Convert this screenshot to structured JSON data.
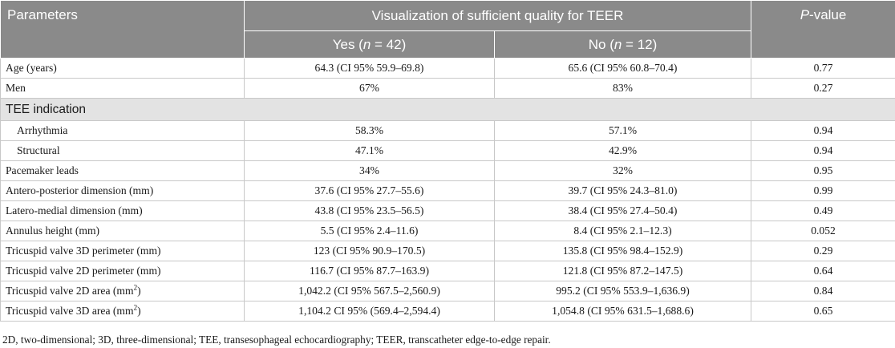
{
  "header": {
    "parameters": "Parameters",
    "group_title": "Visualization of sufficient quality for TEER",
    "p_value_italic": "P",
    "p_value_rest": "-value",
    "yes_prefix": "Yes (",
    "yes_n": "n",
    "yes_suffix": " = 42)",
    "no_prefix": "No (",
    "no_n": "n",
    "no_suffix": " = 12)"
  },
  "rows": [
    {
      "label": "Age (years)",
      "yes": "64.3 (CI 95% 59.9–69.8)",
      "no": "65.6 (CI 95% 60.8–70.4)",
      "p": "0.77"
    },
    {
      "label": "Men",
      "yes": "67%",
      "no": "83%",
      "p": "0.27"
    }
  ],
  "section": {
    "label": "TEE indication"
  },
  "indented_rows": [
    {
      "label": "Arrhythmia",
      "yes": "58.3%",
      "no": "57.1%",
      "p": "0.94"
    },
    {
      "label": "Structural",
      "yes": "47.1%",
      "no": "42.9%",
      "p": "0.94"
    }
  ],
  "rows2": [
    {
      "label": "Pacemaker leads",
      "yes": "34%",
      "no": "32%",
      "p": "0.95"
    },
    {
      "label": "Antero-posterior dimension (mm)",
      "yes": "37.6 (CI 95% 27.7–55.6)",
      "no": "39.7 (CI 95% 24.3–81.0)",
      "p": "0.99"
    },
    {
      "label": "Latero-medial dimension (mm)",
      "yes": "43.8 (CI 95% 23.5–56.5)",
      "no": "38.4 (CI 95% 27.4–50.4)",
      "p": "0.49"
    },
    {
      "label": "Annulus height (mm)",
      "yes": "5.5 (CI 95% 2.4–11.6)",
      "no": "8.4 (CI 95% 2.1–12.3)",
      "p": "0.052"
    },
    {
      "label": "Tricuspid valve 3D perimeter (mm)",
      "yes": "123 (CI 95% 90.9–170.5)",
      "no": "135.8 (CI 95% 98.4–152.9)",
      "p": "0.29"
    },
    {
      "label": "Tricuspid valve 2D perimeter (mm)",
      "yes": "116.7 (CI 95% 87.7–163.9)",
      "no": "121.8 (CI 95% 87.2–147.5)",
      "p": "0.64"
    }
  ],
  "area_rows": [
    {
      "label_prefix": "Tricuspid valve 2D area (mm",
      "sup": "2",
      "label_suffix": ")",
      "yes": "1,042.2 (CI 95% 567.5–2,560.9)",
      "no": "995.2 (CI 95% 553.9–1,636.9)",
      "p": "0.84"
    },
    {
      "label_prefix": "Tricuspid valve 3D area (mm",
      "sup": "2",
      "label_suffix": ")",
      "yes": "1,104.2 CI 95% (569.4–2,594.4)",
      "no": "1,054.8 (CI 95% 631.5–1,688.6)",
      "p": "0.65"
    }
  ],
  "footnote": "2D, two-dimensional; 3D, three-dimensional; TEE, transesophageal echocardiography; TEER, transcatheter edge-to-edge repair."
}
